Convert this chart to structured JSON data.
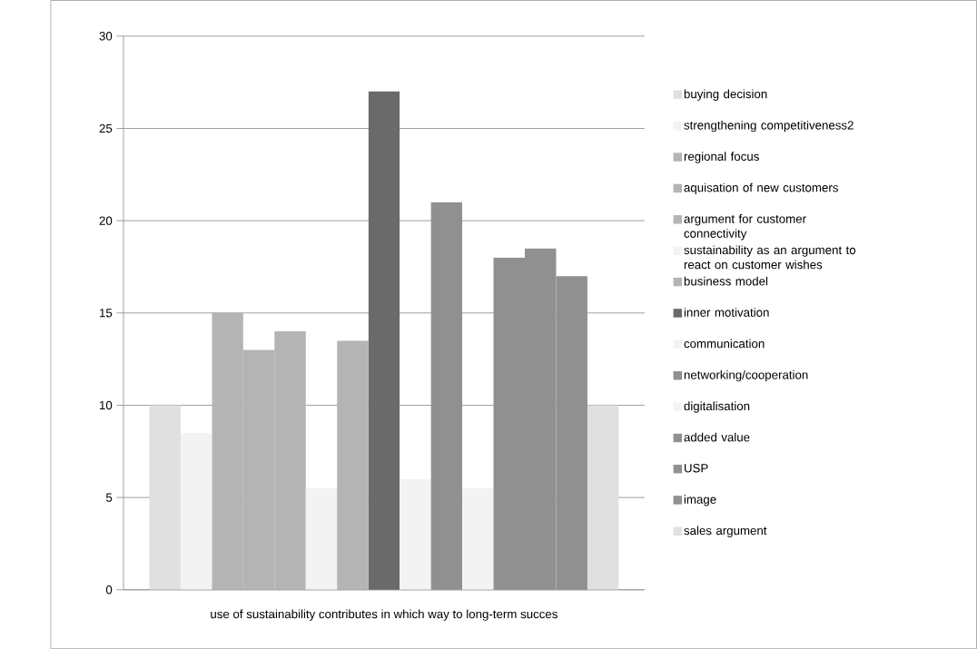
{
  "chart_data": {
    "type": "bar",
    "categories": [
      "use of sustainability contributes in which way to long-term succes"
    ],
    "series": [
      {
        "name": "buying decision",
        "color": "#e0e0e0",
        "values": [
          10
        ]
      },
      {
        "name": "strengthening competitiveness2",
        "color": "#f3f3f3",
        "values": [
          8.5
        ]
      },
      {
        "name": "regional focus",
        "color": "#b4b4b4",
        "values": [
          15
        ]
      },
      {
        "name": "aquisation of new customers",
        "color": "#b4b4b4",
        "values": [
          13
        ]
      },
      {
        "name": "argument for customer connectivity",
        "color": "#b4b4b4",
        "values": [
          14
        ]
      },
      {
        "name": "sustainability as an argument to react on customer wishes",
        "color": "#f3f3f3",
        "values": [
          5.5
        ]
      },
      {
        "name": "business model",
        "color": "#b4b4b4",
        "values": [
          13.5
        ]
      },
      {
        "name": "inner motivation",
        "color": "#6a6a6a",
        "values": [
          27
        ]
      },
      {
        "name": "communication",
        "color": "#f3f3f3",
        "values": [
          6
        ]
      },
      {
        "name": "networking/cooperation",
        "color": "#909090",
        "values": [
          21
        ]
      },
      {
        "name": "digitalisation",
        "color": "#f3f3f3",
        "values": [
          5.5
        ]
      },
      {
        "name": "added value",
        "color": "#909090",
        "values": [
          18
        ]
      },
      {
        "name": "USP",
        "color": "#909090",
        "values": [
          18.5
        ]
      },
      {
        "name": "image",
        "color": "#909090",
        "values": [
          17
        ]
      },
      {
        "name": "sales argument",
        "color": "#e0e0e0",
        "values": [
          10
        ]
      }
    ],
    "ylim": [
      0,
      30
    ],
    "yticks": [
      0,
      5,
      10,
      15,
      20,
      25,
      30
    ],
    "grid": "y",
    "legend": "right"
  }
}
